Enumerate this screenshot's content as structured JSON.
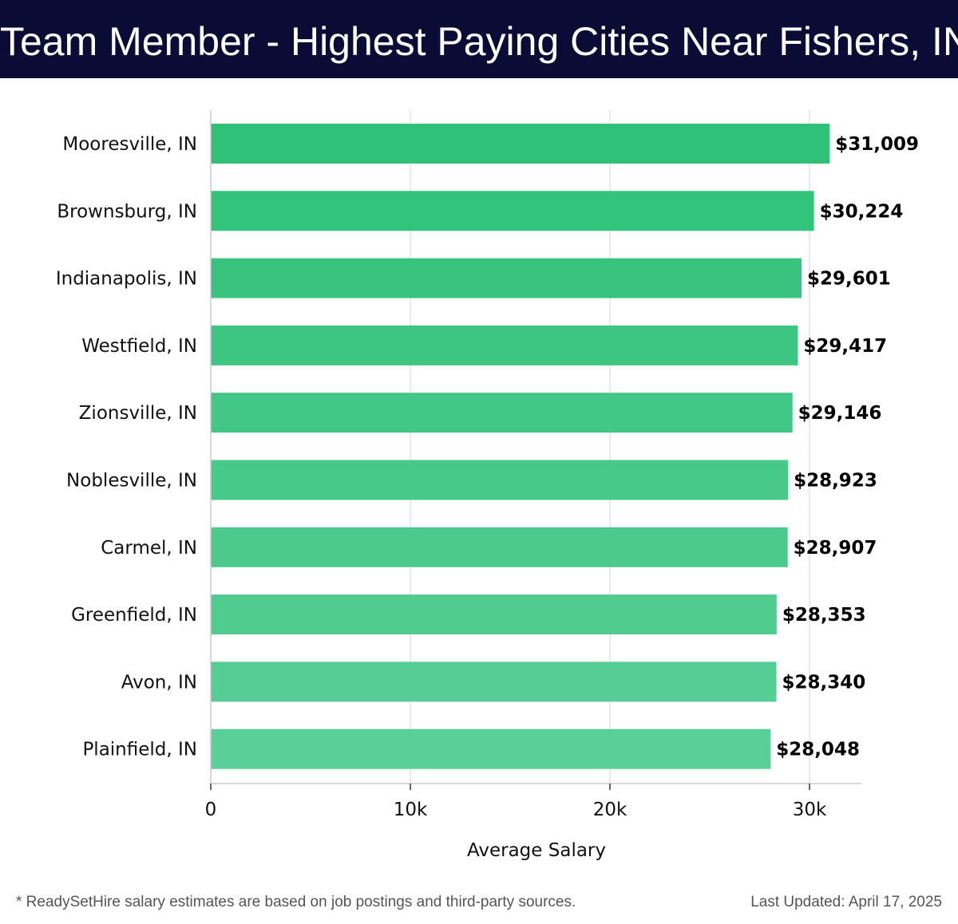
{
  "header": {
    "title": "Team Member - Highest Paying Cities Near Fishers, IN"
  },
  "chart_data": {
    "type": "bar",
    "orientation": "horizontal",
    "categories": [
      "Mooresville, IN",
      "Brownsburg, IN",
      "Indianapolis, IN",
      "Westfield, IN",
      "Zionsville, IN",
      "Noblesville, IN",
      "Carmel, IN",
      "Greenfield, IN",
      "Avon, IN",
      "Plainfield, IN"
    ],
    "values": [
      31009,
      30224,
      29601,
      29417,
      29146,
      28923,
      28907,
      28353,
      28340,
      28048
    ],
    "value_labels": [
      "$31,009",
      "$30,224",
      "$29,601",
      "$29,417",
      "$29,146",
      "$28,923",
      "$28,907",
      "$28,353",
      "$28,340",
      "$28,048"
    ],
    "xlabel": "Average Salary",
    "ylabel": "",
    "xlim": [
      0,
      32600
    ],
    "xticks": [
      0,
      10000,
      20000,
      30000
    ],
    "xtick_labels": [
      "0",
      "10k",
      "20k",
      "30k"
    ],
    "grid": "vertical",
    "legend": "none",
    "colors": {
      "bar_top": "#2ec177",
      "bar_bottom": "#5bcf98",
      "grid": "#e3e3e3",
      "axis": "#cccccc",
      "header_bg": "#0b0c35"
    }
  },
  "footer": {
    "note": "* ReadySetHire salary estimates are based on job postings and third-party sources.",
    "updated": "Last Updated: April 17, 2025"
  }
}
